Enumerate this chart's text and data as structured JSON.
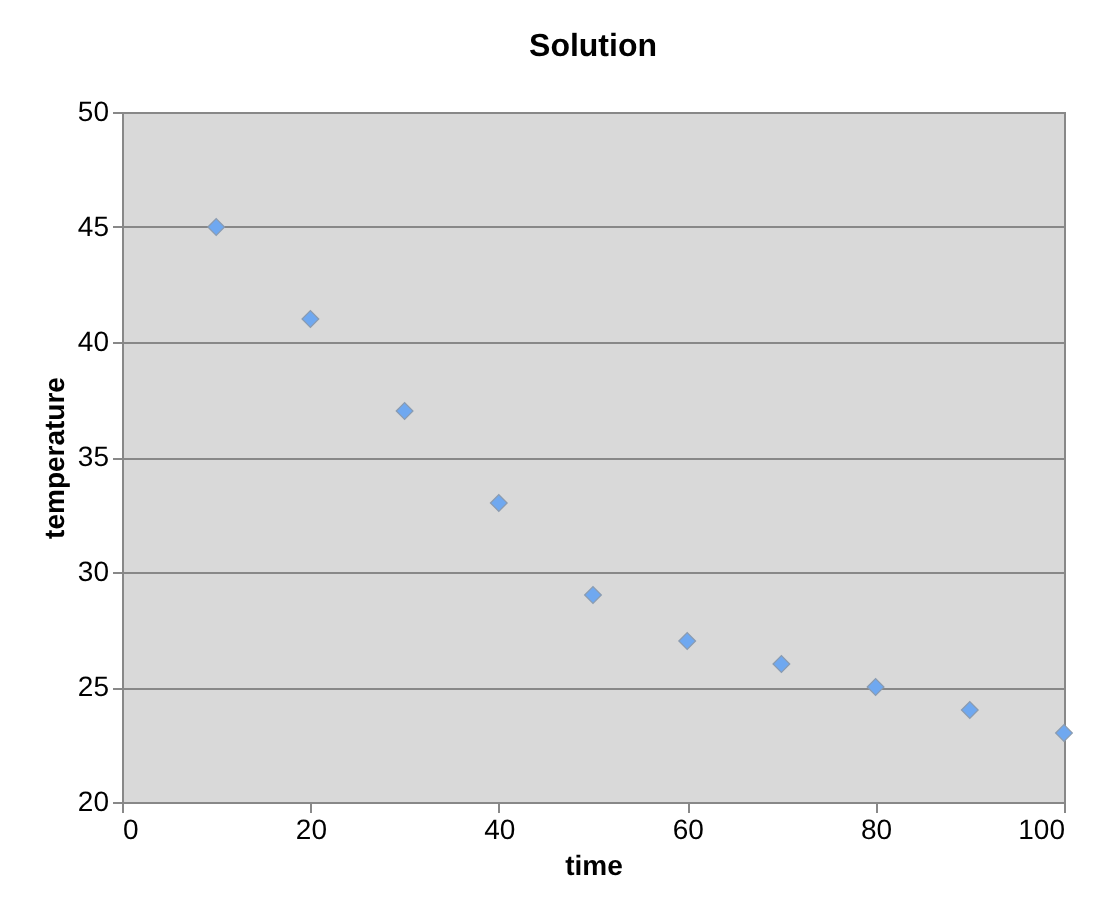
{
  "chart_data": {
    "type": "scatter",
    "title": "Solution",
    "xlabel": "time",
    "ylabel": "temperature",
    "x": [
      10,
      20,
      30,
      40,
      50,
      60,
      70,
      80,
      90,
      100
    ],
    "series": [
      {
        "color": "#6fa8f0",
        "values": [
          45,
          41,
          37,
          33,
          29,
          27,
          26,
          25,
          24,
          23
        ]
      }
    ],
    "xlim": [
      0,
      100
    ],
    "xticks": [
      0,
      20,
      40,
      60,
      80,
      100
    ],
    "ylim": [
      20,
      50
    ],
    "yticks": [
      20,
      25,
      30,
      35,
      40,
      45,
      50
    ],
    "grid": "y",
    "marker": "diamond"
  }
}
